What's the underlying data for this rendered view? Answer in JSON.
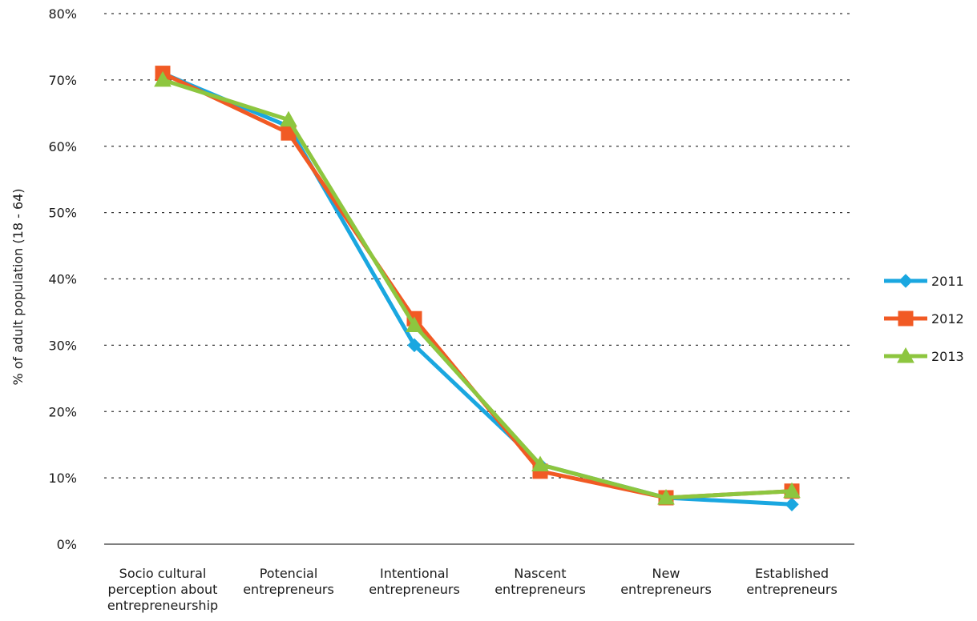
{
  "chart_data": {
    "type": "line",
    "title": "",
    "xlabel": "",
    "ylabel": "% of adult population (18 - 64)",
    "ylim": [
      0,
      80
    ],
    "yticks": [
      "0%",
      "10%",
      "20%",
      "30%",
      "40%",
      "50%",
      "60%",
      "70%",
      "80%"
    ],
    "ytick_values": [
      0,
      10,
      20,
      30,
      40,
      50,
      60,
      70,
      80
    ],
    "grid": "horizontal-dotted",
    "legend": "right",
    "categories": [
      [
        "Socio cultural",
        "perception about",
        "entrepreneurship"
      ],
      [
        "Potencial",
        "entrepreneurs"
      ],
      [
        "Intentional",
        "entrepreneurs"
      ],
      [
        "Nascent",
        "entrepreneurs"
      ],
      [
        "New",
        "entrepreneurs"
      ],
      [
        "Established",
        "entrepreneurs"
      ]
    ],
    "series": [
      {
        "name": "2011",
        "color": "#1aa7e0",
        "marker": "diamond",
        "values": [
          71,
          63,
          30,
          12,
          7,
          6
        ]
      },
      {
        "name": "2012",
        "color": "#f15a24",
        "marker": "square",
        "values": [
          71,
          62,
          34,
          11,
          7,
          8
        ]
      },
      {
        "name": "2013",
        "color": "#8dc63f",
        "marker": "triangle",
        "values": [
          70,
          64,
          33,
          12,
          7,
          8
        ]
      }
    ]
  }
}
